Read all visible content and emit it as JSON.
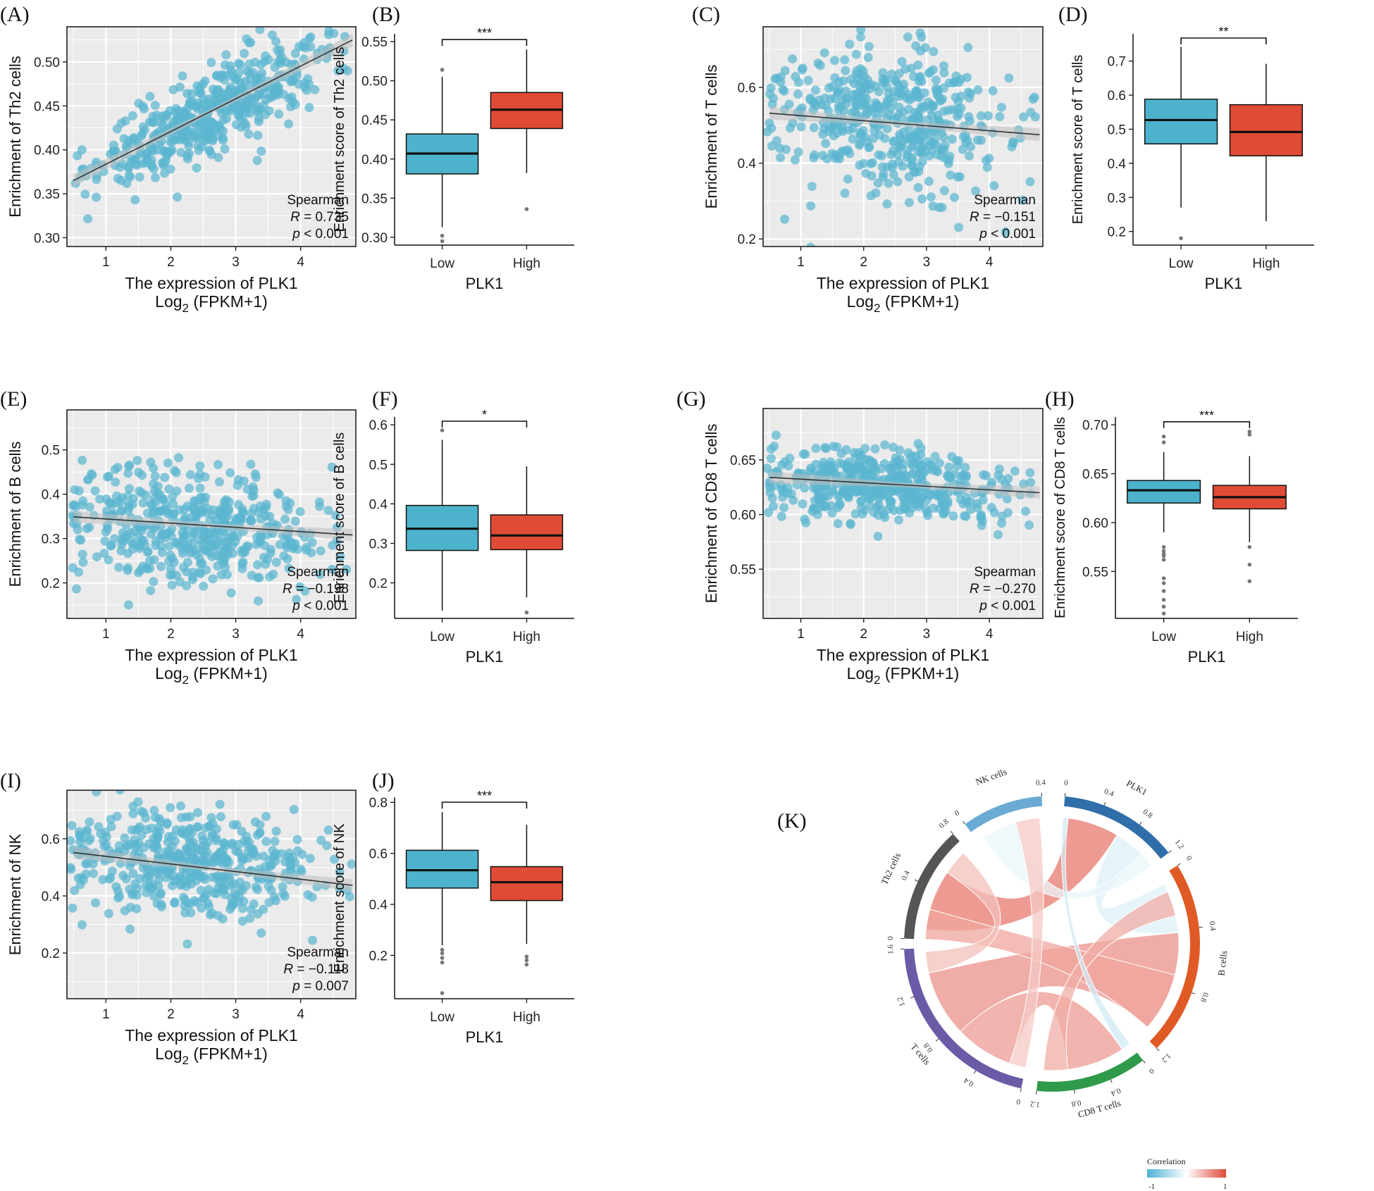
{
  "figure": {
    "panel_letters": [
      "(A)",
      "(B)",
      "(C)",
      "(D)",
      "(E)",
      "(F)",
      "(G)",
      "(H)",
      "(I)",
      "(J)",
      "(K)"
    ]
  },
  "chart_data": [
    {
      "panel": "(A)",
      "type": "scatter",
      "xlabel": "The expression of PLK1",
      "xlabel2": "Log",
      "xlabel2_sub": "2",
      "xlabel2_rest": " (FPKM+1)",
      "ylabel": "Enrichment of Th2 cells",
      "xlim": [
        0.4,
        4.85
      ],
      "ylim": [
        0.29,
        0.54
      ],
      "xticks": [
        1,
        2,
        3,
        4
      ],
      "xtick_labels": [
        "1",
        "2",
        "3",
        "4"
      ],
      "yticks": [
        0.3,
        0.35,
        0.4,
        0.45,
        0.5
      ],
      "ytick_labels": [
        "0.30",
        "0.35",
        "0.40",
        "0.45",
        "0.50"
      ],
      "trend": {
        "x0": 0.5,
        "y0": 0.365,
        "x1": 4.8,
        "y1": 0.525
      },
      "cloud": {
        "n": 480,
        "spread": 0.026,
        "xmean": 2.7,
        "xsd": 0.9,
        "seed": 11
      },
      "point_color": "#5bb5d0",
      "stats": {
        "method": "Spearman",
        "r_label": "R",
        "r_value": " = 0.735",
        "p_label": "p",
        "p_value": " < 0.001"
      }
    },
    {
      "panel": "(B)",
      "type": "box",
      "xlabel": "PLK1",
      "ylabel": "Enrichment score of Th2 cells",
      "categories": [
        "Low",
        "High"
      ],
      "ylim": [
        0.29,
        0.56
      ],
      "yticks": [
        0.3,
        0.35,
        0.4,
        0.45,
        0.5,
        0.55
      ],
      "ytick_labels": [
        "0.30",
        "0.35",
        "0.40",
        "0.45",
        "0.50",
        "0.55"
      ],
      "boxes": [
        {
          "name": "Low",
          "min": 0.313,
          "q1": 0.381,
          "median": 0.407,
          "q3": 0.432,
          "max": 0.505,
          "outliers": [
            0.514,
            0.302,
            0.295
          ],
          "color": "#4db3cc"
        },
        {
          "name": "High",
          "min": 0.382,
          "q1": 0.439,
          "median": 0.463,
          "q3": 0.485,
          "max": 0.54,
          "outliers": [
            0.336
          ],
          "color": "#e04b35"
        }
      ],
      "significance": "***"
    },
    {
      "panel": "(C)",
      "type": "scatter",
      "xlabel": "The expression of PLK1",
      "xlabel2": "Log",
      "xlabel2_sub": "2",
      "xlabel2_rest": " (FPKM+1)",
      "ylabel": "Enrichment of T cells",
      "xlim": [
        0.4,
        4.85
      ],
      "ylim": [
        0.18,
        0.76
      ],
      "xticks": [
        1,
        2,
        3,
        4
      ],
      "xtick_labels": [
        "1",
        "2",
        "3",
        "4"
      ],
      "yticks": [
        0.2,
        0.4,
        0.6
      ],
      "ytick_labels": [
        "0.2",
        "0.4",
        "0.6"
      ],
      "trend": {
        "x0": 0.5,
        "y0": 0.532,
        "x1": 4.8,
        "y1": 0.475
      },
      "cloud": {
        "n": 480,
        "spread": 0.095,
        "xmean": 2.4,
        "xsd": 0.95,
        "seed": 23
      },
      "point_color": "#5bb5d0",
      "stats": {
        "method": "Spearman",
        "r_label": "R",
        "r_value": " = −0.151",
        "p_label": "p",
        "p_value": " < 0.001"
      }
    },
    {
      "panel": "(D)",
      "type": "box",
      "xlabel": "PLK1",
      "ylabel": "Enrichment score of T cells",
      "categories": [
        "Low",
        "High"
      ],
      "ylim": [
        0.16,
        0.78
      ],
      "yticks": [
        0.2,
        0.3,
        0.4,
        0.5,
        0.6,
        0.7
      ],
      "ytick_labels": [
        "0.2",
        "0.3",
        "0.4",
        "0.5",
        "0.6",
        "0.7"
      ],
      "boxes": [
        {
          "name": "Low",
          "min": 0.27,
          "q1": 0.457,
          "median": 0.527,
          "q3": 0.588,
          "max": 0.742,
          "outliers": [
            0.18
          ],
          "color": "#4db3cc"
        },
        {
          "name": "High",
          "min": 0.23,
          "q1": 0.422,
          "median": 0.492,
          "q3": 0.572,
          "max": 0.692,
          "outliers": [],
          "color": "#e04b35"
        }
      ],
      "significance": "**"
    },
    {
      "panel": "(E)",
      "type": "scatter",
      "xlabel": "The expression of PLK1",
      "xlabel2": "Log",
      "xlabel2_sub": "2",
      "xlabel2_rest": " (FPKM+1)",
      "ylabel": "Enrichment of B cells",
      "xlim": [
        0.4,
        4.85
      ],
      "ylim": [
        0.12,
        0.59
      ],
      "xticks": [
        1,
        2,
        3,
        4
      ],
      "xtick_labels": [
        "1",
        "2",
        "3",
        "4"
      ],
      "yticks": [
        0.2,
        0.3,
        0.4,
        0.5
      ],
      "ytick_labels": [
        "0.2",
        "0.3",
        "0.4",
        "0.5"
      ],
      "trend": {
        "x0": 0.5,
        "y0": 0.349,
        "x1": 4.8,
        "y1": 0.308
      },
      "cloud": {
        "n": 480,
        "spread": 0.065,
        "xmean": 2.4,
        "xsd": 0.95,
        "seed": 37
      },
      "point_color": "#5bb5d0",
      "stats": {
        "method": "Spearman",
        "r_label": "R",
        "r_value": " = −0.198",
        "p_label": "p",
        "p_value": " < 0.001"
      }
    },
    {
      "panel": "(F)",
      "type": "box",
      "xlabel": "PLK1",
      "ylabel": "Enrichment score of B cells",
      "categories": [
        "Low",
        "High"
      ],
      "ylim": [
        0.11,
        0.62
      ],
      "yticks": [
        0.2,
        0.3,
        0.4,
        0.5,
        0.6
      ],
      "ytick_labels": [
        "0.2",
        "0.3",
        "0.4",
        "0.5",
        "0.6"
      ],
      "boxes": [
        {
          "name": "Low",
          "min": 0.13,
          "q1": 0.282,
          "median": 0.337,
          "q3": 0.396,
          "max": 0.562,
          "outliers": [
            0.586
          ],
          "color": "#4db3cc"
        },
        {
          "name": "High",
          "min": 0.163,
          "q1": 0.284,
          "median": 0.32,
          "q3": 0.372,
          "max": 0.495,
          "outliers": [
            0.125
          ],
          "color": "#e04b35"
        }
      ],
      "significance": "*"
    },
    {
      "panel": "(G)",
      "type": "scatter",
      "xlabel": "The expression of PLK1",
      "xlabel2": "Log",
      "xlabel2_sub": "2",
      "xlabel2_rest": " (FPKM+1)",
      "ylabel": "Enrichment of CD8 T cells",
      "xlim": [
        0.4,
        4.85
      ],
      "ylim": [
        0.505,
        0.697
      ],
      "xticks": [
        1,
        2,
        3,
        4
      ],
      "xtick_labels": [
        "1",
        "2",
        "3",
        "4"
      ],
      "yticks": [
        0.55,
        0.6,
        0.65
      ],
      "ytick_labels": [
        "0.55",
        "0.60",
        "0.65"
      ],
      "trend": {
        "x0": 0.5,
        "y0": 0.634,
        "x1": 4.8,
        "y1": 0.62
      },
      "cloud": {
        "n": 500,
        "spread": 0.016,
        "xmean": 2.4,
        "xsd": 0.95,
        "seed": 51
      },
      "point_color": "#5bb5d0",
      "stats": {
        "method": "Spearman",
        "r_label": "R",
        "r_value": " = −0.270",
        "p_label": "p",
        "p_value": " < 0.001"
      }
    },
    {
      "panel": "(H)",
      "type": "box",
      "xlabel": "PLK1",
      "ylabel": "Enrichment score of CD8 T cells",
      "categories": [
        "Low",
        "High"
      ],
      "ylim": [
        0.502,
        0.708
      ],
      "yticks": [
        0.55,
        0.6,
        0.65,
        0.7
      ],
      "ytick_labels": [
        "0.55",
        "0.60",
        "0.65",
        "0.70"
      ],
      "boxes": [
        {
          "name": "Low",
          "min": 0.59,
          "q1": 0.62,
          "median": 0.633,
          "q3": 0.643,
          "max": 0.672,
          "outliers": [
            0.688,
            0.682,
            0.575,
            0.571,
            0.568,
            0.566,
            0.562,
            0.543,
            0.538,
            0.53,
            0.521,
            0.514,
            0.507
          ],
          "color": "#4db3cc"
        },
        {
          "name": "High",
          "min": 0.58,
          "q1": 0.614,
          "median": 0.626,
          "q3": 0.638,
          "max": 0.668,
          "outliers": [
            0.693,
            0.69,
            0.575,
            0.557,
            0.54
          ],
          "color": "#e04b35"
        }
      ],
      "significance": "***"
    },
    {
      "panel": "(I)",
      "type": "scatter",
      "xlabel": "The expression of PLK1",
      "xlabel2": "Log",
      "xlabel2_sub": "2",
      "xlabel2_rest": " (FPKM+1)",
      "ylabel": "Enrichment of NK",
      "xlim": [
        0.4,
        4.85
      ],
      "ylim": [
        0.04,
        0.77
      ],
      "xticks": [
        1,
        2,
        3,
        4
      ],
      "xtick_labels": [
        "1",
        "2",
        "3",
        "4"
      ],
      "yticks": [
        0.2,
        0.4,
        0.6
      ],
      "ytick_labels": [
        "0.2",
        "0.4",
        "0.6"
      ],
      "trend": {
        "x0": 0.5,
        "y0": 0.552,
        "x1": 4.8,
        "y1": 0.437
      },
      "cloud": {
        "n": 480,
        "spread": 0.09,
        "xmean": 2.3,
        "xsd": 0.95,
        "seed": 67
      },
      "point_color": "#5bb5d0",
      "stats": {
        "method": "Spearman",
        "r_label": "R",
        "r_value": " = −0.118",
        "p_label": "p",
        "p_value": " = 0.007"
      }
    },
    {
      "panel": "(J)",
      "type": "box",
      "xlabel": "PLK1",
      "ylabel": "Enrichment score of NK",
      "categories": [
        "Low",
        "High"
      ],
      "ylim": [
        0.03,
        0.82
      ],
      "yticks": [
        0.2,
        0.4,
        0.6,
        0.8
      ],
      "ytick_labels": [
        "0.2",
        "0.4",
        "0.6",
        "0.8"
      ],
      "boxes": [
        {
          "name": "Low",
          "min": 0.24,
          "q1": 0.464,
          "median": 0.534,
          "q3": 0.612,
          "max": 0.762,
          "outliers": [
            0.222,
            0.208,
            0.19,
            0.172,
            0.052
          ],
          "color": "#4db3cc"
        },
        {
          "name": "High",
          "min": 0.245,
          "q1": 0.415,
          "median": 0.487,
          "q3": 0.548,
          "max": 0.712,
          "outliers": [
            0.195,
            0.181,
            0.164
          ],
          "color": "#e04b35"
        }
      ],
      "significance": "***"
    },
    {
      "panel": "(K)",
      "type": "chord",
      "sectors": [
        {
          "name": "PLK1",
          "color": "#2f6ea9",
          "start": 5,
          "end": 52,
          "max": 1.2,
          "ticks": [
            "0",
            "0.4",
            "0.8",
            "1.2"
          ]
        },
        {
          "name": "B cells",
          "color": "#e05a26",
          "start": 58,
          "end": 135,
          "max": 1.2,
          "ticks": [
            "0",
            "0.4",
            "0.8",
            "1.2"
          ]
        },
        {
          "name": "CD8 T cells",
          "color": "#2f9a4a",
          "start": 142,
          "end": 186,
          "max": 1.2,
          "ticks": [
            "0",
            "0.4",
            "0.8",
            "1.2"
          ]
        },
        {
          "name": "T cells",
          "color": "#6b5aa6",
          "start": 192,
          "end": 268,
          "max": 1.6,
          "ticks": [
            "0",
            "0.4",
            "0.8",
            "1.2",
            "1.6"
          ]
        },
        {
          "name": "Th2 cells",
          "color": "#555555",
          "start": 272,
          "end": 318,
          "max": 0.8,
          "ticks": [
            "0",
            "0.4",
            "0.8"
          ]
        },
        {
          "name": "NK cells",
          "color": "#6aaad4",
          "start": 324,
          "end": 356,
          "max": 0.4,
          "ticks": [
            "0",
            "0.4"
          ]
        }
      ],
      "links": [
        {
          "a": 0,
          "a0": 0.05,
          "a1": 0.55,
          "b": 4,
          "b0": 0.1,
          "b1": 0.7,
          "value": 0.735
        },
        {
          "a": 0,
          "a0": 0.55,
          "a1": 0.85,
          "b": 1,
          "b0": 0.05,
          "b1": 0.35,
          "value": -0.198
        },
        {
          "a": 0,
          "a0": 0.85,
          "a1": 1.0,
          "b": 5,
          "b0": 0.1,
          "b1": 0.6,
          "value": -0.118
        },
        {
          "a": 1,
          "a0": 0.35,
          "a1": 0.95,
          "b": 3,
          "b0": 0.45,
          "b1": 0.85,
          "value": 0.6
        },
        {
          "a": 1,
          "a0": 0.6,
          "a1": 0.95,
          "b": 4,
          "b0": 0.0,
          "b1": 0.3,
          "value": 0.5
        },
        {
          "a": 2,
          "a0": 0.1,
          "a1": 0.7,
          "b": 3,
          "b0": 0.1,
          "b1": 0.45,
          "value": 0.55
        },
        {
          "a": 2,
          "a0": 0.7,
          "a1": 0.95,
          "b": 1,
          "b0": 0.1,
          "b1": 0.25,
          "value": 0.45
        },
        {
          "a": 3,
          "a0": 0.85,
          "a1": 0.98,
          "b": 4,
          "b0": 0.7,
          "b1": 0.95,
          "value": 0.35
        },
        {
          "a": 3,
          "a0": 0.0,
          "a1": 0.1,
          "b": 5,
          "b0": 0.6,
          "b1": 0.95,
          "value": 0.3
        },
        {
          "a": 2,
          "a0": 0.0,
          "a1": 0.1,
          "b": 0,
          "b0": 0.0,
          "b1": 0.05,
          "value": -0.27
        }
      ],
      "legend": {
        "title": "Correlation",
        "min_label": "-1",
        "max_label": "1",
        "low_color": "#4fb3d6",
        "high_color": "#de4a3a"
      }
    }
  ]
}
